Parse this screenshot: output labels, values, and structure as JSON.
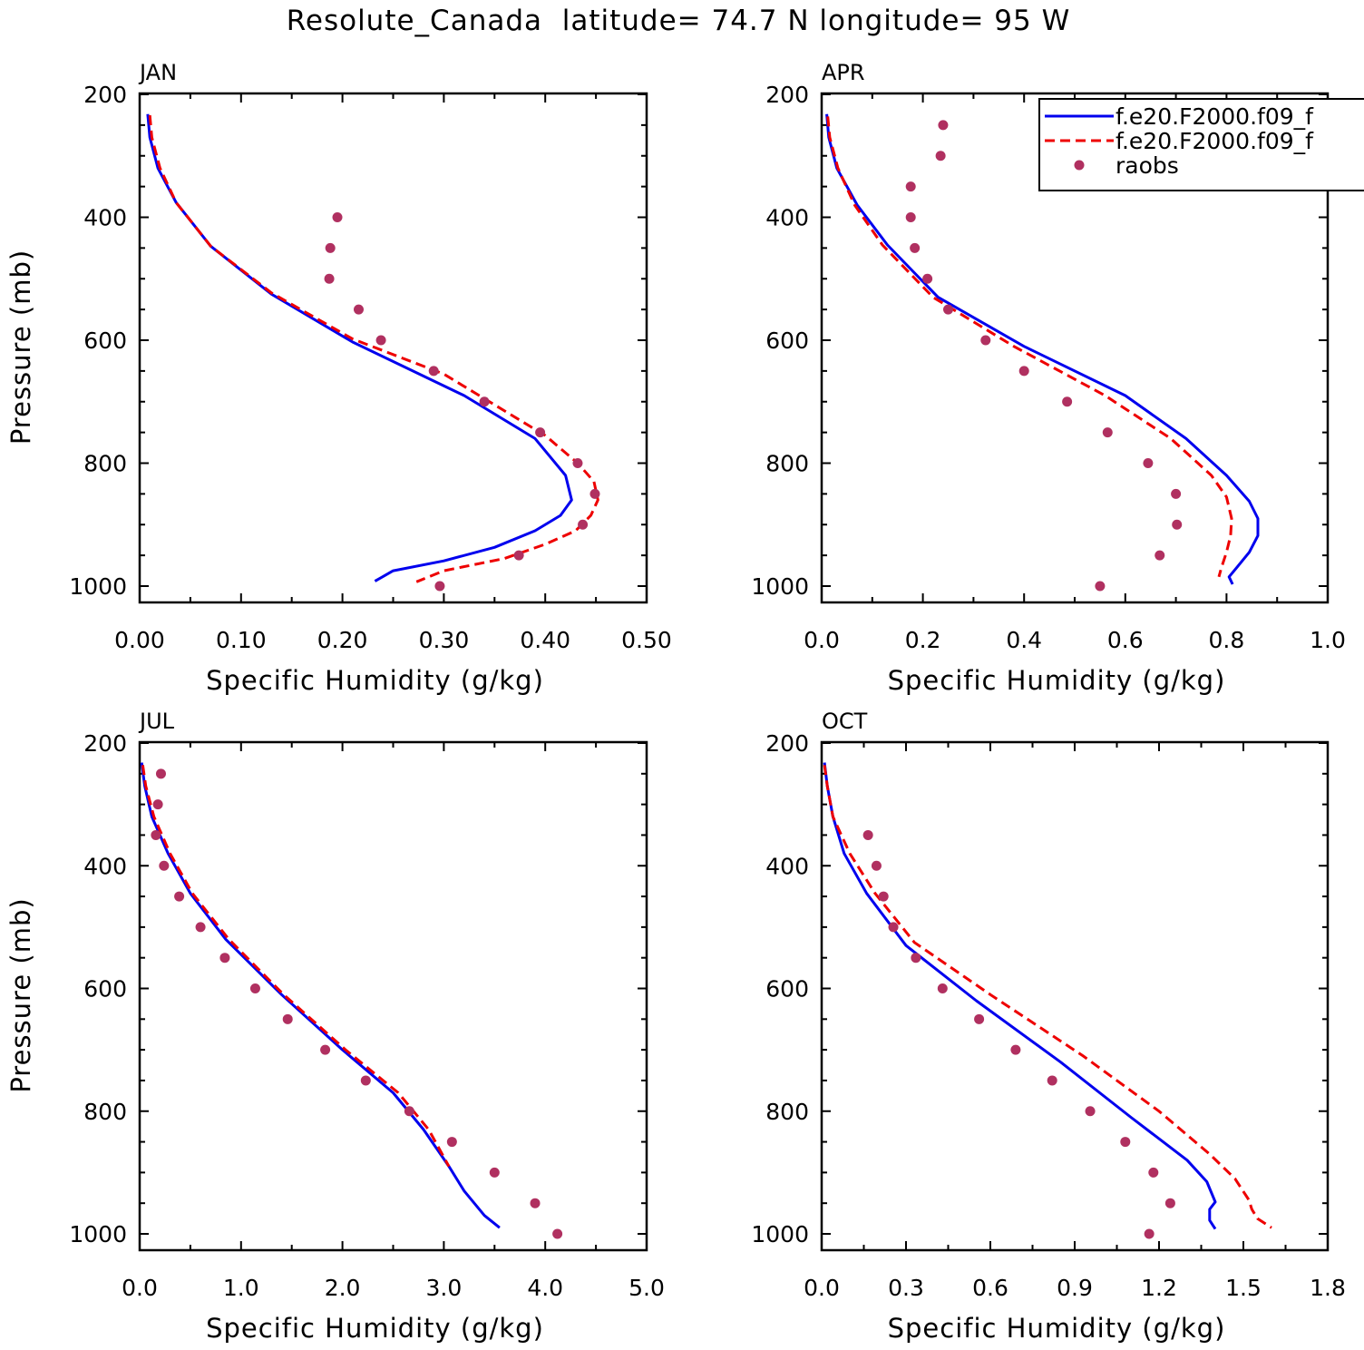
{
  "title": "Resolute_Canada  latitude= 74.7 N longitude= 95 W",
  "colors": {
    "model1": "#0000ee",
    "model2": "#ee0000",
    "raobs": "#b03060",
    "frame": "#000000"
  },
  "legend": {
    "placement": "top-right",
    "entries": [
      {
        "label": "f.e20.F2000.f09_f",
        "style": "solid",
        "color": "#0000ee"
      },
      {
        "label": "f.e20.F2000.f09_f",
        "style": "dashed",
        "color": "#ee0000"
      },
      {
        "label": "raobs",
        "style": "dot",
        "color": "#b03060"
      }
    ]
  },
  "chart_data": [
    {
      "type": "line",
      "panel": "JAN",
      "xlabel": "Specific Humidity (g/kg)",
      "ylabel": "Pressure (mb)",
      "xlim": [
        0,
        0.5
      ],
      "ylim": [
        1000,
        200
      ],
      "x_ticks": [
        "0.00",
        "0.10",
        "0.20",
        "0.30",
        "0.40",
        "0.50"
      ],
      "y_ticks": [
        "200",
        "400",
        "600",
        "800",
        "1000"
      ],
      "series": [
        {
          "kind": "solid",
          "points": [
            [
              0.008,
              232
            ],
            [
              0.01,
              270
            ],
            [
              0.018,
              320
            ],
            [
              0.036,
              376
            ],
            [
              0.07,
              447
            ],
            [
              0.13,
              525
            ],
            [
              0.21,
              603
            ],
            [
              0.32,
              690
            ],
            [
              0.39,
              760
            ],
            [
              0.42,
              820
            ],
            [
              0.426,
              860
            ],
            [
              0.415,
              885
            ],
            [
              0.39,
              910
            ],
            [
              0.35,
              937
            ],
            [
              0.3,
              959
            ],
            [
              0.25,
              975
            ],
            [
              0.232,
              992
            ]
          ]
        },
        {
          "kind": "dashed",
          "points": [
            [
              0.01,
              234
            ],
            [
              0.012,
              270
            ],
            [
              0.02,
              320
            ],
            [
              0.036,
              376
            ],
            [
              0.07,
              447
            ],
            [
              0.13,
              523
            ],
            [
              0.21,
              598
            ],
            [
              0.3,
              655
            ],
            [
              0.345,
              700
            ],
            [
              0.4,
              755
            ],
            [
              0.432,
              800
            ],
            [
              0.448,
              830
            ],
            [
              0.452,
              860
            ],
            [
              0.445,
              885
            ],
            [
              0.43,
              910
            ],
            [
              0.4,
              932
            ],
            [
              0.36,
              955
            ],
            [
              0.3,
              975
            ],
            [
              0.273,
              993
            ]
          ]
        },
        {
          "kind": "points",
          "points": [
            [
              0.195,
              400
            ],
            [
              0.188,
              450
            ],
            [
              0.187,
              500
            ],
            [
              0.216,
              550
            ],
            [
              0.238,
              600
            ],
            [
              0.29,
              650
            ],
            [
              0.34,
              700
            ],
            [
              0.395,
              750
            ],
            [
              0.432,
              800
            ],
            [
              0.449,
              850
            ],
            [
              0.437,
              900
            ],
            [
              0.374,
              950
            ],
            [
              0.296,
              1000
            ]
          ]
        }
      ]
    },
    {
      "type": "line",
      "panel": "APR",
      "xlabel": "Specific Humidity (g/kg)",
      "ylabel": "",
      "xlim": [
        0,
        1
      ],
      "ylim": [
        1000,
        200
      ],
      "x_ticks": [
        "0.0",
        "0.2",
        "0.4",
        "0.6",
        "0.8",
        "1.0"
      ],
      "y_ticks": [
        "200",
        "400",
        "600",
        "800",
        "1000"
      ],
      "series": [
        {
          "kind": "solid",
          "points": [
            [
              0.01,
              232
            ],
            [
              0.014,
              270
            ],
            [
              0.03,
              320
            ],
            [
              0.07,
              380
            ],
            [
              0.13,
              445
            ],
            [
              0.23,
              530
            ],
            [
              0.4,
              610
            ],
            [
              0.6,
              690
            ],
            [
              0.72,
              760
            ],
            [
              0.8,
              820
            ],
            [
              0.845,
              862
            ],
            [
              0.862,
              890
            ],
            [
              0.862,
              918
            ],
            [
              0.845,
              945
            ],
            [
              0.82,
              970
            ],
            [
              0.805,
              985
            ],
            [
              0.812,
              997
            ]
          ]
        },
        {
          "kind": "dashed",
          "points": [
            [
              0.012,
              236
            ],
            [
              0.016,
              270
            ],
            [
              0.032,
              320
            ],
            [
              0.065,
              380
            ],
            [
              0.12,
              445
            ],
            [
              0.22,
              530
            ],
            [
              0.38,
              610
            ],
            [
              0.56,
              690
            ],
            [
              0.69,
              760
            ],
            [
              0.77,
              820
            ],
            [
              0.8,
              855
            ],
            [
              0.81,
              890
            ],
            [
              0.808,
              918
            ],
            [
              0.8,
              945
            ],
            [
              0.79,
              970
            ],
            [
              0.785,
              985
            ]
          ]
        },
        {
          "kind": "points",
          "points": [
            [
              0.24,
              250
            ],
            [
              0.235,
              300
            ],
            [
              0.176,
              350
            ],
            [
              0.176,
              400
            ],
            [
              0.184,
              450
            ],
            [
              0.209,
              500
            ],
            [
              0.25,
              550
            ],
            [
              0.324,
              600
            ],
            [
              0.4,
              650
            ],
            [
              0.485,
              700
            ],
            [
              0.565,
              750
            ],
            [
              0.645,
              800
            ],
            [
              0.7,
              850
            ],
            [
              0.702,
              900
            ],
            [
              0.668,
              950
            ],
            [
              0.55,
              1000
            ]
          ]
        }
      ]
    },
    {
      "type": "line",
      "panel": "JUL",
      "xlabel": "Specific Humidity (g/kg)",
      "ylabel": "Pressure (mb)",
      "xlim": [
        0,
        5
      ],
      "ylim": [
        1000,
        200
      ],
      "x_ticks": [
        "0.0",
        "1.0",
        "2.0",
        "3.0",
        "4.0",
        "5.0"
      ],
      "y_ticks": [
        "200",
        "400",
        "600",
        "800",
        "1000"
      ],
      "series": [
        {
          "kind": "solid",
          "points": [
            [
              0.02,
              232
            ],
            [
              0.05,
              270
            ],
            [
              0.12,
              320
            ],
            [
              0.28,
              380
            ],
            [
              0.5,
              445
            ],
            [
              0.85,
              520
            ],
            [
              1.4,
              610
            ],
            [
              2.0,
              700
            ],
            [
              2.5,
              770
            ],
            [
              2.8,
              830
            ],
            [
              3.05,
              890
            ],
            [
              3.2,
              930
            ],
            [
              3.4,
              970
            ],
            [
              3.55,
              990
            ]
          ]
        },
        {
          "kind": "dashed",
          "points": [
            [
              0.03,
              236
            ],
            [
              0.06,
              270
            ],
            [
              0.14,
              320
            ],
            [
              0.3,
              380
            ],
            [
              0.52,
              445
            ],
            [
              0.88,
              520
            ],
            [
              1.42,
              610
            ],
            [
              2.03,
              700
            ],
            [
              2.55,
              770
            ],
            [
              2.85,
              830
            ],
            [
              3.05,
              890
            ]
          ]
        },
        {
          "kind": "points",
          "points": [
            [
              0.21,
              250
            ],
            [
              0.18,
              300
            ],
            [
              0.16,
              350
            ],
            [
              0.24,
              400
            ],
            [
              0.39,
              450
            ],
            [
              0.6,
              500
            ],
            [
              0.84,
              550
            ],
            [
              1.14,
              600
            ],
            [
              1.46,
              650
            ],
            [
              1.83,
              700
            ],
            [
              2.23,
              750
            ],
            [
              2.66,
              800
            ],
            [
              3.08,
              850
            ],
            [
              3.5,
              900
            ],
            [
              3.9,
              950
            ],
            [
              4.12,
              1000
            ]
          ]
        }
      ]
    },
    {
      "type": "line",
      "panel": "OCT",
      "xlabel": "Specific Humidity (g/kg)",
      "ylabel": "",
      "xlim": [
        0,
        1.8
      ],
      "ylim": [
        1000,
        200
      ],
      "x_ticks": [
        "0.0",
        "0.3",
        "0.6",
        "0.9",
        "1.2",
        "1.5",
        "1.8"
      ],
      "y_ticks": [
        "200",
        "400",
        "600",
        "800",
        "1000"
      ],
      "series": [
        {
          "kind": "solid",
          "points": [
            [
              0.01,
              232
            ],
            [
              0.02,
              270
            ],
            [
              0.04,
              320
            ],
            [
              0.08,
              380
            ],
            [
              0.16,
              445
            ],
            [
              0.3,
              530
            ],
            [
              0.55,
              620
            ],
            [
              0.85,
              720
            ],
            [
              1.1,
              810
            ],
            [
              1.3,
              880
            ],
            [
              1.37,
              915
            ],
            [
              1.4,
              948
            ],
            [
              1.38,
              960
            ],
            [
              1.38,
              978
            ],
            [
              1.4,
              992
            ]
          ]
        },
        {
          "kind": "dashed",
          "points": [
            [
              0.01,
              236
            ],
            [
              0.02,
              270
            ],
            [
              0.04,
              320
            ],
            [
              0.1,
              380
            ],
            [
              0.19,
              445
            ],
            [
              0.33,
              525
            ],
            [
              0.6,
              610
            ],
            [
              0.93,
              710
            ],
            [
              1.2,
              800
            ],
            [
              1.38,
              870
            ],
            [
              1.47,
              910
            ],
            [
              1.52,
              945
            ],
            [
              1.53,
              960
            ],
            [
              1.55,
              975
            ],
            [
              1.6,
              990
            ]
          ]
        },
        {
          "kind": "points",
          "points": [
            [
              0.165,
              350
            ],
            [
              0.195,
              400
            ],
            [
              0.22,
              450
            ],
            [
              0.255,
              500
            ],
            [
              0.335,
              550
            ],
            [
              0.43,
              600
            ],
            [
              0.56,
              650
            ],
            [
              0.69,
              700
            ],
            [
              0.82,
              750
            ],
            [
              0.955,
              800
            ],
            [
              1.08,
              850
            ],
            [
              1.18,
              900
            ],
            [
              1.24,
              950
            ],
            [
              1.165,
              1000
            ]
          ]
        }
      ]
    }
  ]
}
